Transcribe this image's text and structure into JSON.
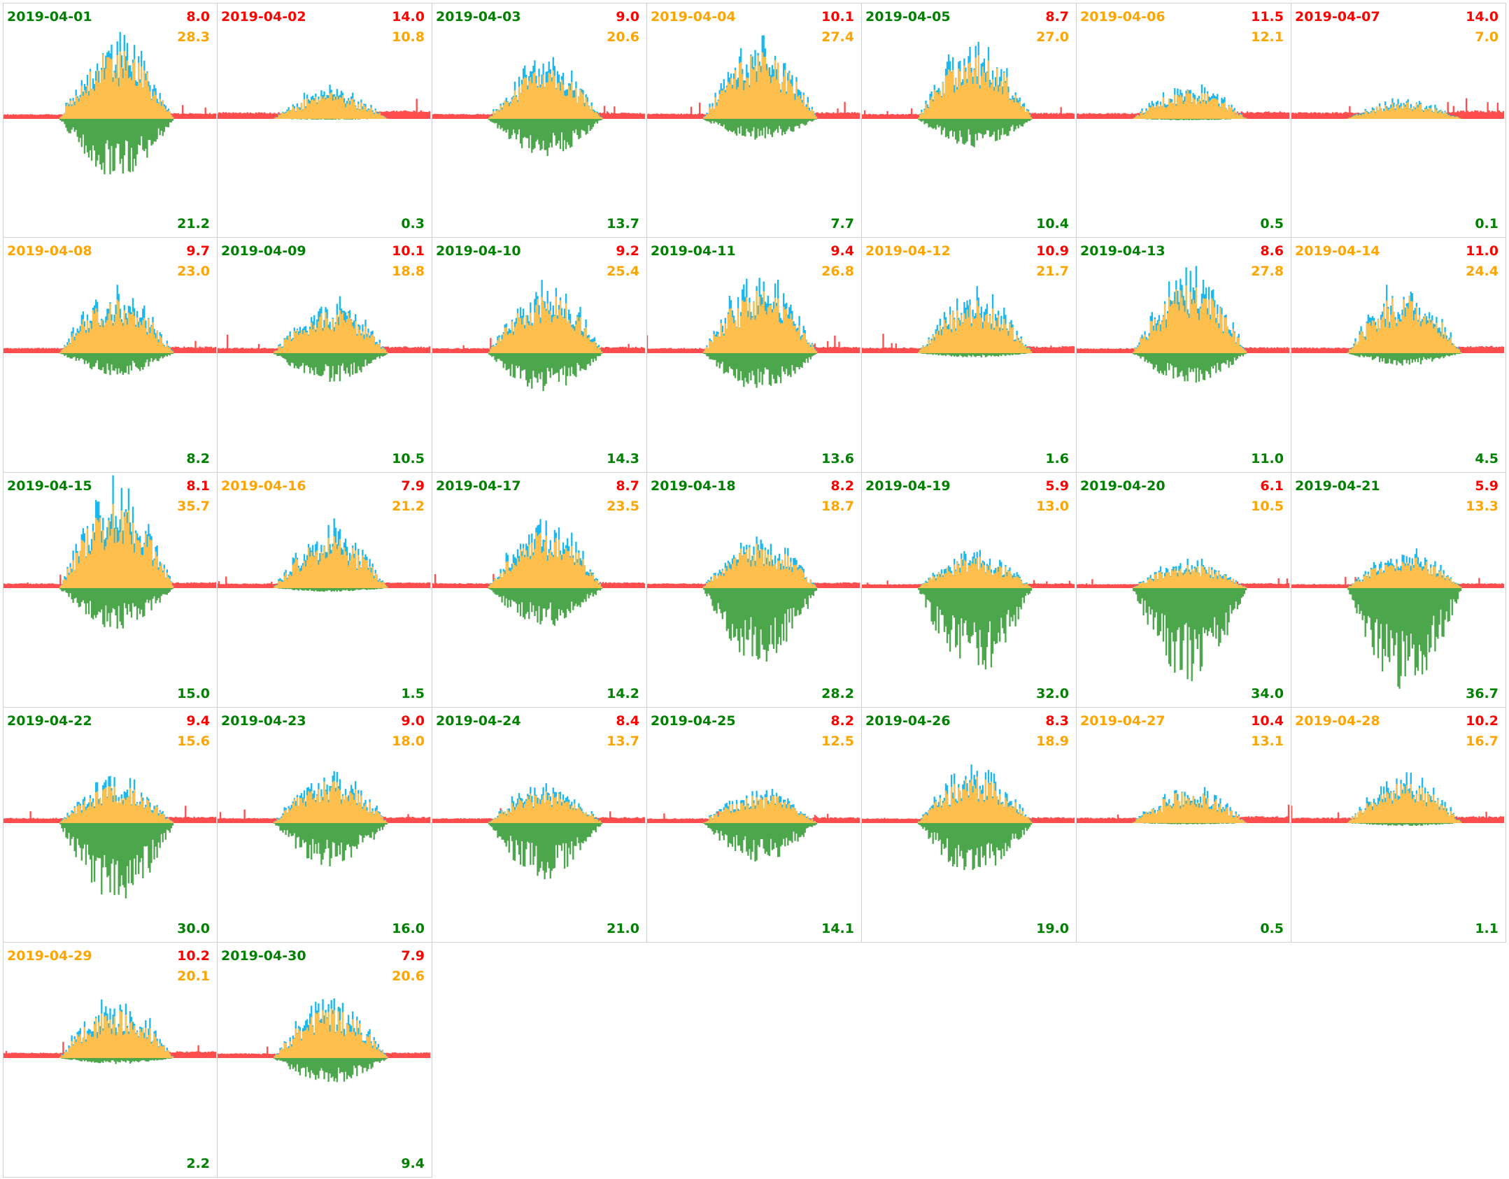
{
  "colors": {
    "green": "#008000",
    "orange": "#ffa500",
    "red": "#ff0000",
    "consumption": "#ff4d4d",
    "solar": "#ffbf4d",
    "solar_peak": "#1ab8ee",
    "export": "#4ca64c"
  },
  "chart_data": {
    "type": "area",
    "title": "",
    "description_series": [
      "consumption",
      "solar",
      "export"
    ],
    "days": [
      {
        "date": "2019-04-01",
        "status": "green",
        "red": "8.0",
        "orange": "28.3",
        "green": "21.2"
      },
      {
        "date": "2019-04-02",
        "status": "red",
        "red": "14.0",
        "orange": "10.8",
        "green": "0.3"
      },
      {
        "date": "2019-04-03",
        "status": "green",
        "red": "9.0",
        "orange": "20.6",
        "green": "13.7"
      },
      {
        "date": "2019-04-04",
        "status": "orange",
        "red": "10.1",
        "orange": "27.4",
        "green": "7.7"
      },
      {
        "date": "2019-04-05",
        "status": "green",
        "red": "8.7",
        "orange": "27.0",
        "green": "10.4"
      },
      {
        "date": "2019-04-06",
        "status": "orange",
        "red": "11.5",
        "orange": "12.1",
        "green": "0.5"
      },
      {
        "date": "2019-04-07",
        "status": "red",
        "red": "14.0",
        "orange": "7.0",
        "green": "0.1"
      },
      {
        "date": "2019-04-08",
        "status": "orange",
        "red": "9.7",
        "orange": "23.0",
        "green": "8.2"
      },
      {
        "date": "2019-04-09",
        "status": "green",
        "red": "10.1",
        "orange": "18.8",
        "green": "10.5"
      },
      {
        "date": "2019-04-10",
        "status": "green",
        "red": "9.2",
        "orange": "25.4",
        "green": "14.3"
      },
      {
        "date": "2019-04-11",
        "status": "green",
        "red": "9.4",
        "orange": "26.8",
        "green": "13.6"
      },
      {
        "date": "2019-04-12",
        "status": "orange",
        "red": "10.9",
        "orange": "21.7",
        "green": "1.6"
      },
      {
        "date": "2019-04-13",
        "status": "green",
        "red": "8.6",
        "orange": "27.8",
        "green": "11.0"
      },
      {
        "date": "2019-04-14",
        "status": "orange",
        "red": "11.0",
        "orange": "24.4",
        "green": "4.5"
      },
      {
        "date": "2019-04-15",
        "status": "green",
        "red": "8.1",
        "orange": "35.7",
        "green": "15.0"
      },
      {
        "date": "2019-04-16",
        "status": "orange",
        "red": "7.9",
        "orange": "21.2",
        "green": "1.5"
      },
      {
        "date": "2019-04-17",
        "status": "green",
        "red": "8.7",
        "orange": "23.5",
        "green": "14.2"
      },
      {
        "date": "2019-04-18",
        "status": "green",
        "red": "8.2",
        "orange": "18.7",
        "green": "28.2"
      },
      {
        "date": "2019-04-19",
        "status": "green",
        "red": "5.9",
        "orange": "13.0",
        "green": "32.0"
      },
      {
        "date": "2019-04-20",
        "status": "green",
        "red": "6.1",
        "orange": "10.5",
        "green": "34.0"
      },
      {
        "date": "2019-04-21",
        "status": "green",
        "red": "5.9",
        "orange": "13.3",
        "green": "36.7"
      },
      {
        "date": "2019-04-22",
        "status": "green",
        "red": "9.4",
        "orange": "15.6",
        "green": "30.0"
      },
      {
        "date": "2019-04-23",
        "status": "green",
        "red": "9.0",
        "orange": "18.0",
        "green": "16.0"
      },
      {
        "date": "2019-04-24",
        "status": "green",
        "red": "8.4",
        "orange": "13.7",
        "green": "21.0"
      },
      {
        "date": "2019-04-25",
        "status": "green",
        "red": "8.2",
        "orange": "12.5",
        "green": "14.1"
      },
      {
        "date": "2019-04-26",
        "status": "green",
        "red": "8.3",
        "orange": "18.9",
        "green": "19.0"
      },
      {
        "date": "2019-04-27",
        "status": "orange",
        "red": "10.4",
        "orange": "13.1",
        "green": "0.5"
      },
      {
        "date": "2019-04-28",
        "status": "orange",
        "red": "10.2",
        "orange": "16.7",
        "green": "1.1"
      },
      {
        "date": "2019-04-29",
        "status": "orange",
        "red": "10.2",
        "orange": "20.1",
        "green": "2.2"
      },
      {
        "date": "2019-04-30",
        "status": "green",
        "red": "7.9",
        "orange": "20.6",
        "green": "9.4"
      }
    ]
  }
}
